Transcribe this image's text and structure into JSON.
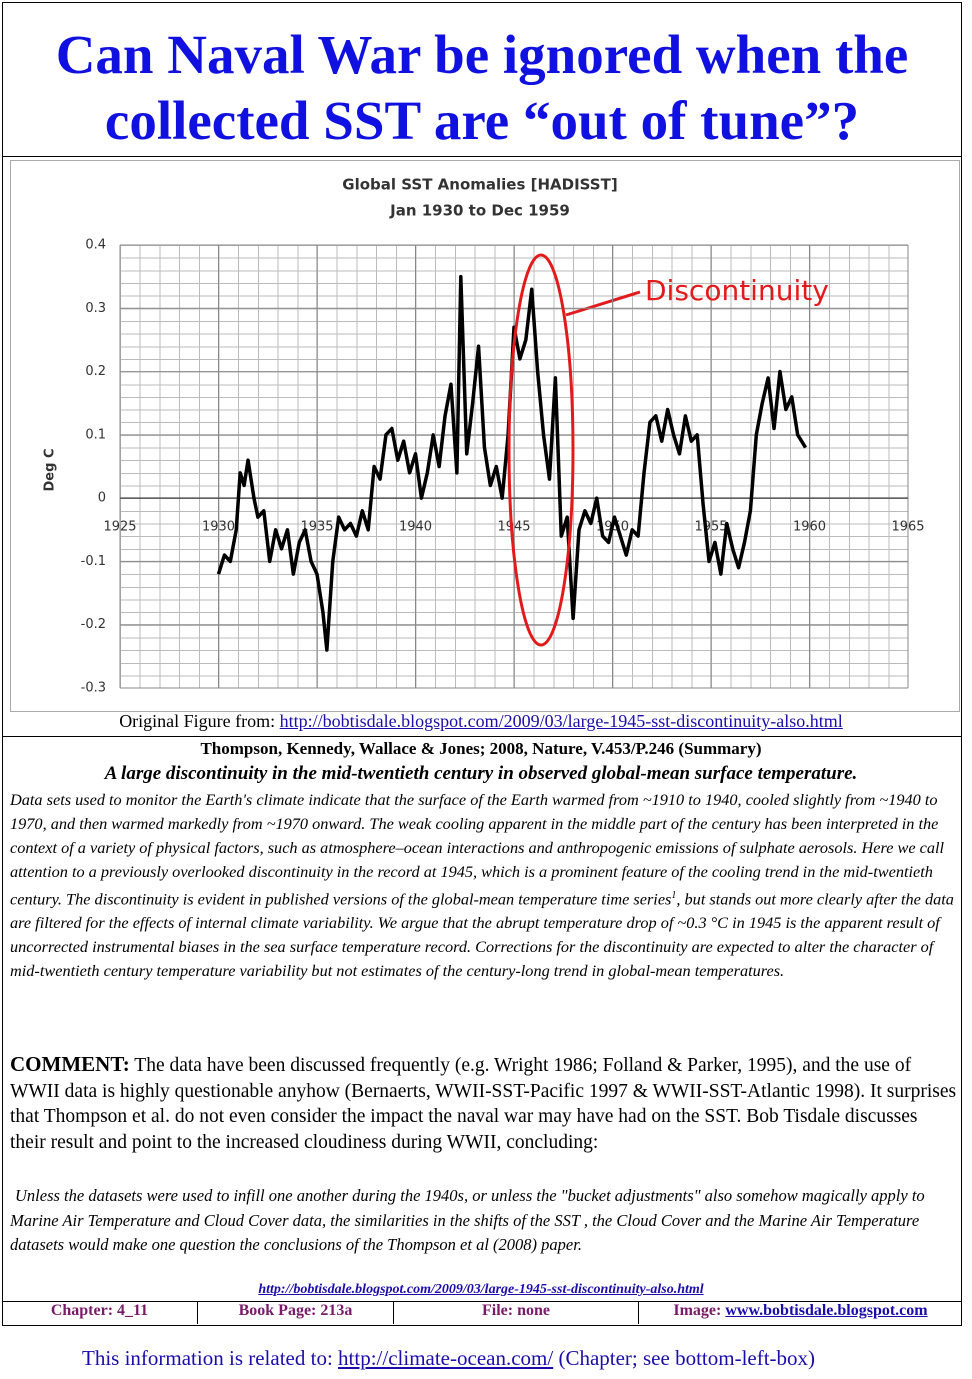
{
  "header": {
    "title": "Can Naval War be ignored when the collected SST are “out of tune”?"
  },
  "chart_data": {
    "type": "line",
    "title": "Global SST Anomalies [HADISST]",
    "subtitle": "Jan 1930 to Dec 1959",
    "ylabel": "Deg C",
    "annotation": "Discontinuity",
    "annotation_color": "#e31a1c",
    "color": "#000000",
    "grid": true,
    "xlim": [
      1925,
      1965
    ],
    "xticks": [
      1925,
      1930,
      1935,
      1940,
      1945,
      1950,
      1955,
      1960,
      1965
    ],
    "ylim": [
      -0.3,
      0.4
    ],
    "yticks": [
      -0.3,
      -0.2,
      -0.1,
      0,
      0.1,
      0.2,
      0.3,
      0.4
    ],
    "x": [
      1930.0,
      1930.3,
      1930.6,
      1930.9,
      1931.1,
      1931.3,
      1931.5,
      1931.8,
      1932.0,
      1932.3,
      1932.6,
      1932.9,
      1933.2,
      1933.5,
      1933.8,
      1934.1,
      1934.4,
      1934.7,
      1935.0,
      1935.3,
      1935.5,
      1935.8,
      1936.1,
      1936.4,
      1936.7,
      1937.0,
      1937.3,
      1937.6,
      1937.9,
      1938.2,
      1938.5,
      1938.8,
      1939.1,
      1939.4,
      1939.7,
      1940.0,
      1940.3,
      1940.6,
      1940.9,
      1941.2,
      1941.5,
      1941.8,
      1942.1,
      1942.3,
      1942.6,
      1942.9,
      1943.2,
      1943.5,
      1943.8,
      1944.1,
      1944.4,
      1944.7,
      1945.0,
      1945.3,
      1945.6,
      1945.9,
      1946.2,
      1946.5,
      1946.8,
      1947.1,
      1947.4,
      1947.7,
      1948.0,
      1948.3,
      1948.6,
      1948.9,
      1949.2,
      1949.5,
      1949.8,
      1950.1,
      1950.4,
      1950.7,
      1951.0,
      1951.3,
      1951.6,
      1951.9,
      1952.2,
      1952.5,
      1952.8,
      1953.1,
      1953.4,
      1953.7,
      1954.0,
      1954.3,
      1954.6,
      1954.9,
      1955.2,
      1955.5,
      1955.8,
      1956.1,
      1956.4,
      1956.7,
      1957.0,
      1957.3,
      1957.6,
      1957.9,
      1958.2,
      1958.5,
      1958.8,
      1959.1,
      1959.4,
      1959.8
    ],
    "values": [
      -0.12,
      -0.09,
      -0.1,
      -0.05,
      0.04,
      0.02,
      0.06,
      0.0,
      -0.03,
      -0.02,
      -0.1,
      -0.05,
      -0.08,
      -0.05,
      -0.12,
      -0.07,
      -0.05,
      -0.1,
      -0.12,
      -0.18,
      -0.24,
      -0.1,
      -0.03,
      -0.05,
      -0.04,
      -0.06,
      -0.02,
      -0.05,
      0.05,
      0.03,
      0.1,
      0.11,
      0.06,
      0.09,
      0.04,
      0.07,
      0.0,
      0.04,
      0.1,
      0.05,
      0.13,
      0.18,
      0.04,
      0.35,
      0.07,
      0.15,
      0.24,
      0.08,
      0.02,
      0.05,
      0.0,
      0.1,
      0.27,
      0.22,
      0.25,
      0.33,
      0.2,
      0.1,
      0.03,
      0.19,
      -0.06,
      -0.03,
      -0.19,
      -0.05,
      -0.02,
      -0.04,
      0.0,
      -0.06,
      -0.07,
      -0.03,
      -0.06,
      -0.09,
      -0.05,
      -0.06,
      0.04,
      0.12,
      0.13,
      0.09,
      0.14,
      0.1,
      0.07,
      0.13,
      0.09,
      0.1,
      -0.01,
      -0.1,
      -0.07,
      -0.12,
      -0.04,
      -0.08,
      -0.11,
      -0.07,
      -0.02,
      0.1,
      0.15,
      0.19,
      0.11,
      0.2,
      0.14,
      0.16,
      0.1,
      0.08
    ]
  },
  "figure_source": {
    "label": "Original Figure from:",
    "url": "http://bobtisdale.blogspot.com/2009/03/large-1945-sst-discontinuity-also.html"
  },
  "citation": "Thompson, Kennedy, Wallace & Jones; 2008, Nature, V.453/P.246  (Summary)",
  "article_title": "A large discontinuity in the mid-twentieth century in observed global-mean surface temperature.",
  "abstract": {
    "before": "Data sets used to monitor the Earth's climate indicate that the surface of the Earth warmed from ~1910 to 1940, cooled slightly from ~1940 to 1970, and then warmed markedly from ~1970 onward. The weak cooling apparent in the middle part of the century has been interpreted in the context of a variety of physical factors, such as atmosphere–ocean interactions and anthropogenic emissions of sulphate aerosols. Here we call attention to a previously overlooked discontinuity in the record at 1945, which is a prominent feature of the cooling trend in the mid-twentieth century. The discontinuity is evident in published versions of the global-mean temperature time series",
    "footnote": "1",
    "after": ", but stands out more clearly after the data are filtered for the effects of internal climate variability. We argue that the abrupt temperature drop of ~0.3 °C in 1945 is the apparent result of uncorrected instrumental biases in the sea surface temperature record. Corrections for the discontinuity are expected to alter the character of mid-twentieth century temperature variability but not estimates of the century-long trend in global-mean temperatures."
  },
  "comment": {
    "label": "COMMENT:",
    "text": "The data have been discussed frequently (e.g. Wright 1986;  Folland & Parker, 1995), and the use of WWII data is highly questionable anyhow (Bernaerts, WWII-SST-Pacific 1997 & WWII-SST-Atlantic 1998). It surprises that Thompson et al. do not even consider the impact the naval war may have had on the SST. Bob Tisdale discusses their result and point to the increased cloudiness during WWII, concluding:"
  },
  "quote": "Unless the datasets were used to infill one another during the 1940s, or unless the \"bucket adjustments\" also somehow magically apply to Marine Air Temperature and Cloud Cover data, the similarities in the shifts of the SST , the Cloud Cover and the Marine Air Temperature datasets would make one question the conclusions of the Thompson et al (2008) paper.",
  "quote_source": "http://bobtisdale.blogspot.com/2009/03/large-1945-sst-discontinuity-also.html",
  "footer": {
    "chapter": "Chapter: 4_11",
    "book_page": "Book Page: 213a",
    "file": "File: none",
    "image_label": "Image:",
    "image_link": "www.bobtisdale.blogspot.com"
  },
  "related": {
    "text": "This information is related to:",
    "url": "http://climate-ocean.com/",
    "note": "(Chapter; see bottom-left-box)"
  }
}
